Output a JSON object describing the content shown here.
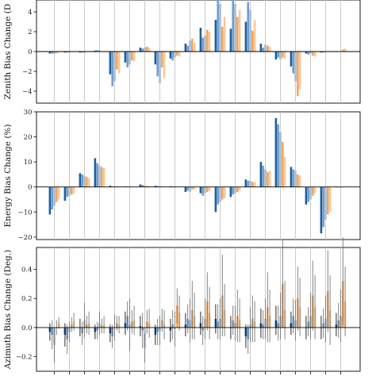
{
  "chart_data": [
    {
      "type": "bar",
      "ylabel": "Zenith Bias Change (D",
      "ylim": [
        -5.2,
        5.2
      ],
      "yticks": [
        4,
        2,
        0,
        -2,
        -4
      ],
      "ytick_labels": [
        "4",
        "2",
        "0",
        "−2",
        "−4"
      ],
      "groups": 20,
      "series_colors": [
        "#1f5f9a",
        "#6f9fd0",
        "#a7bbd0",
        "#f2a65e",
        "#f7c89a"
      ],
      "values": [
        [
          -0.2,
          -0.2,
          -0.25,
          -0.15,
          -0.1
        ],
        [
          -0.1,
          -0.1,
          -0.1,
          0.0,
          0.0
        ],
        [
          -0.1,
          -0.1,
          -0.1,
          -0.05,
          -0.05
        ],
        [
          0.1,
          0.15,
          0.1,
          0.05,
          0.05
        ],
        [
          -2.3,
          -3.5,
          -3.0,
          -1.8,
          -2.2
        ],
        [
          -1.1,
          -1.6,
          -1.3,
          -0.9,
          -1.0
        ],
        [
          0.4,
          0.3,
          0.4,
          0.5,
          0.4
        ],
        [
          -1.3,
          -2.5,
          -3.2,
          -1.6,
          -2.7
        ],
        [
          -0.7,
          -0.9,
          -0.6,
          -0.4,
          -0.5
        ],
        [
          0.8,
          0.6,
          1.1,
          1.3,
          0.9
        ],
        [
          2.4,
          1.4,
          1.6,
          2.2,
          2.0
        ],
        [
          3.2,
          5.2,
          4.8,
          2.5,
          3.5
        ],
        [
          2.3,
          5.2,
          4.8,
          3.5,
          4.2
        ],
        [
          3.0,
          5.0,
          4.2,
          2.1,
          3.2
        ],
        [
          0.8,
          0.4,
          0.7,
          0.6,
          0.5
        ],
        [
          -0.8,
          -0.6,
          -0.8,
          -0.6,
          -0.7
        ],
        [
          -1.5,
          -2.2,
          -3.0,
          -4.5,
          -3.8
        ],
        [
          -0.2,
          -0.3,
          -0.2,
          -0.4,
          -0.5
        ],
        [
          -0.1,
          -0.1,
          -0.05,
          0.0,
          -0.05
        ],
        [
          0.0,
          0.0,
          0.05,
          0.2,
          0.3
        ]
      ]
    },
    {
      "type": "bar",
      "ylabel": "Energy Bias Change (%)",
      "ylim": [
        -21,
        30
      ],
      "yticks": [
        30,
        20,
        10,
        0,
        -10,
        -20
      ],
      "ytick_labels": [
        "30",
        "20",
        "10",
        "0",
        "−10",
        "−20"
      ],
      "groups": 20,
      "series_colors": [
        "#1f5f9a",
        "#6f9fd0",
        "#a7bbd0",
        "#f2a65e",
        "#f7c89a"
      ],
      "values": [
        [
          -11.0,
          -9.0,
          -7.5,
          -6.0,
          -5.0
        ],
        [
          -5.5,
          -4.0,
          -3.5,
          -3.0,
          -2.5
        ],
        [
          5.5,
          5.0,
          4.5,
          4.0,
          3.5
        ],
        [
          11.5,
          9.5,
          8.5,
          8.0,
          7.5
        ],
        [
          0.5,
          0.3,
          0.3,
          0.2,
          0.2
        ],
        [
          0.2,
          0.2,
          0.1,
          0.1,
          0.1
        ],
        [
          1.0,
          0.8,
          0.6,
          0.5,
          0.4
        ],
        [
          0.5,
          0.4,
          0.3,
          0.3,
          0.2
        ],
        [
          0.3,
          0.2,
          0.2,
          0.2,
          0.1
        ],
        [
          -2.0,
          -1.5,
          -2.0,
          -1.0,
          -1.0
        ],
        [
          -2.5,
          -3.5,
          -2.5,
          -2.0,
          -1.5
        ],
        [
          -10.0,
          -7.0,
          -6.0,
          -5.0,
          -4.5
        ],
        [
          -4.0,
          -3.0,
          -2.5,
          -2.0,
          -1.5
        ],
        [
          3.0,
          2.5,
          2.5,
          2.0,
          2.0
        ],
        [
          10.0,
          8.5,
          7.0,
          6.0,
          6.5
        ],
        [
          27.5,
          25.0,
          22.0,
          18.0,
          12.0
        ],
        [
          8.0,
          7.0,
          6.5,
          5.0,
          4.5
        ],
        [
          -7.0,
          -6.0,
          -5.0,
          -3.5,
          -2.5
        ],
        [
          -18.5,
          -16.0,
          -13.0,
          -11.0,
          -10.0
        ],
        [
          0.0,
          0.0,
          0.0,
          0.0,
          0.0
        ]
      ]
    },
    {
      "type": "bar",
      "ylabel": "Azimuth Bias Change (Deg.)",
      "ylim": [
        -0.3,
        0.55
      ],
      "yticks": [
        0.4,
        0.2,
        0.0,
        -0.2
      ],
      "ytick_labels": [
        "0.4",
        "0.2",
        "0.0",
        "−0.2"
      ],
      "groups": 20,
      "series_colors": [
        "#1f5f9a",
        "#6f9fd0",
        "#a7bbd0",
        "#f2a65e",
        "#f7c89a"
      ],
      "values": [
        [
          -0.03,
          -0.05,
          -0.12,
          0.0,
          0.03
        ],
        [
          -0.05,
          -0.08,
          -0.03,
          0.02,
          0.04
        ],
        [
          0.0,
          -0.04,
          0.05,
          0.02,
          0.03
        ],
        [
          -0.03,
          -0.02,
          0.03,
          0.01,
          0.02
        ],
        [
          -0.04,
          -0.06,
          0.0,
          0.03,
          0.02
        ],
        [
          0.03,
          0.08,
          0.02,
          0.04,
          0.05
        ],
        [
          0.01,
          -0.02,
          -0.14,
          0.04,
          0.03
        ],
        [
          -0.05,
          -0.03,
          -0.02,
          0.05,
          0.02
        ],
        [
          -0.02,
          0.02,
          -0.01,
          0.15,
          0.1
        ],
        [
          0.02,
          0.06,
          0.05,
          0.12,
          0.08
        ],
        [
          0.03,
          -0.02,
          0.06,
          0.18,
          0.1
        ],
        [
          0.06,
          0.04,
          0.06,
          0.22,
          0.12
        ],
        [
          0.0,
          0.05,
          0.03,
          0.08,
          0.05
        ],
        [
          -0.06,
          -0.08,
          0.02,
          0.06,
          0.04
        ],
        [
          0.03,
          0.02,
          0.06,
          0.14,
          0.08
        ],
        [
          0.05,
          0.03,
          0.08,
          0.3,
          0.12
        ],
        [
          0.03,
          0.08,
          0.05,
          0.2,
          0.14
        ],
        [
          0.0,
          0.04,
          0.08,
          0.22,
          0.14
        ],
        [
          0.0,
          0.03,
          0.06,
          0.25,
          0.12
        ],
        [
          0.02,
          0.05,
          0.08,
          0.32,
          0.18
        ]
      ],
      "errors": [
        [
          0.06,
          0.1,
          0.12,
          0.05,
          0.04
        ],
        [
          0.08,
          0.1,
          0.07,
          0.05,
          0.06
        ],
        [
          0.06,
          0.08,
          0.12,
          0.06,
          0.08
        ],
        [
          0.05,
          0.06,
          0.08,
          0.05,
          0.06
        ],
        [
          0.06,
          0.08,
          0.09,
          0.05,
          0.06
        ],
        [
          0.08,
          0.1,
          0.18,
          0.08,
          0.1
        ],
        [
          0.07,
          0.12,
          0.1,
          0.08,
          0.1
        ],
        [
          0.07,
          0.09,
          0.1,
          0.08,
          0.1
        ],
        [
          0.08,
          0.1,
          0.12,
          0.12,
          0.12
        ],
        [
          0.08,
          0.1,
          0.15,
          0.2,
          0.16
        ],
        [
          0.08,
          0.1,
          0.14,
          0.2,
          0.18
        ],
        [
          0.1,
          0.12,
          0.14,
          0.28,
          0.18
        ],
        [
          0.08,
          0.1,
          0.12,
          0.18,
          0.15
        ],
        [
          0.08,
          0.1,
          0.12,
          0.16,
          0.14
        ],
        [
          0.1,
          0.1,
          0.14,
          0.24,
          0.18
        ],
        [
          0.1,
          0.12,
          0.16,
          0.3,
          0.2
        ],
        [
          0.08,
          0.12,
          0.14,
          0.22,
          0.2
        ],
        [
          0.08,
          0.1,
          0.16,
          0.24,
          0.22
        ],
        [
          0.08,
          0.1,
          0.16,
          0.28,
          0.24
        ],
        [
          0.08,
          0.12,
          0.18,
          0.3,
          0.24
        ]
      ]
    }
  ]
}
